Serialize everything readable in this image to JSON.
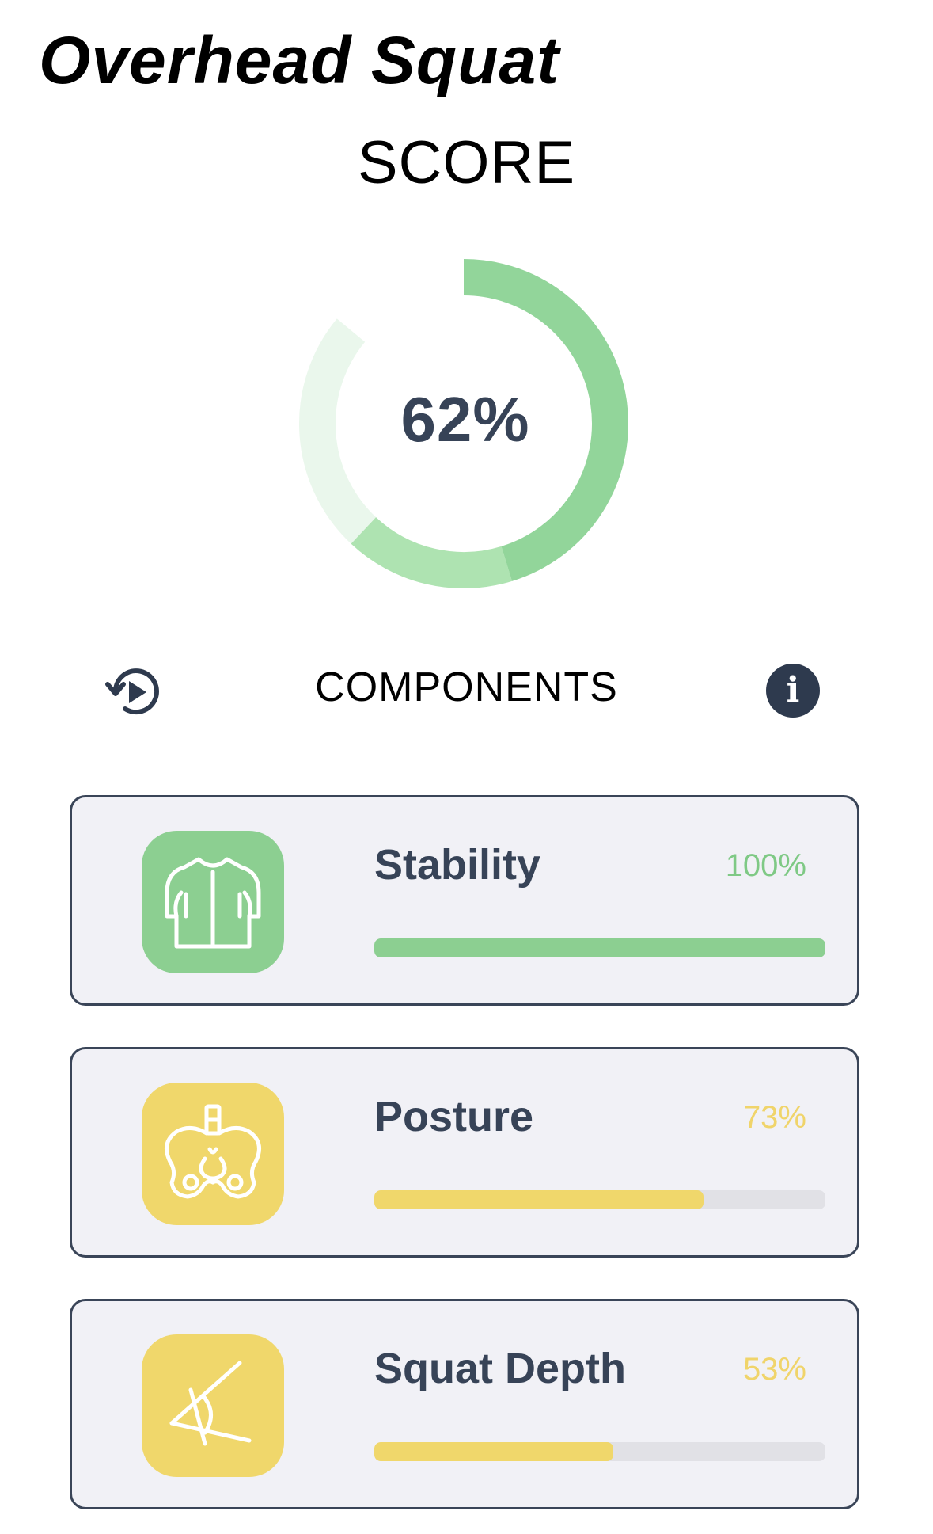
{
  "header": {
    "title": "Overhead Squat"
  },
  "score": {
    "label": "SCORE",
    "value_text": "62%",
    "value": 62,
    "colors": {
      "ring_main": "#92d59a",
      "ring_light": "#aee3b1",
      "ring_track": "#eaf7ec"
    }
  },
  "components": {
    "label": "COMPONENTS",
    "replay_icon": "replay-icon",
    "info_icon_text": "i",
    "items": [
      {
        "name": "Stability",
        "percent_text": "100%",
        "value": 100,
        "color": "#8ccf91",
        "percent_color": "#7fc985",
        "icon": "torso-icon"
      },
      {
        "name": "Posture",
        "percent_text": "73%",
        "value": 73,
        "color": "#f0d76b",
        "percent_color": "#f0d46a",
        "icon": "pelvis-icon"
      },
      {
        "name": "Squat Depth",
        "percent_text": "53%",
        "value": 53,
        "color": "#f0d76b",
        "percent_color": "#f0d46a",
        "icon": "angle-icon"
      }
    ]
  }
}
